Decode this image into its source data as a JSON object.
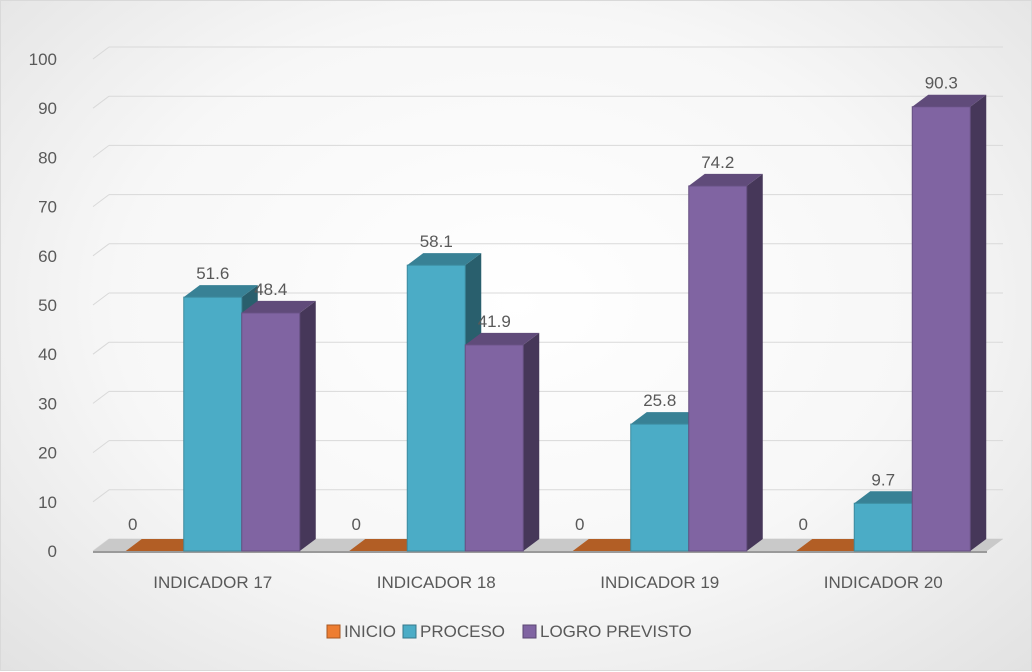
{
  "chart_data": {
    "type": "bar",
    "categories": [
      "INDICADOR 17",
      "INDICADOR 18",
      "INDICADOR 19",
      "INDICADOR 20"
    ],
    "series": [
      {
        "name": "INICIO",
        "values": [
          0,
          0,
          0,
          0
        ],
        "color": "#ED7D31"
      },
      {
        "name": "PROCESO",
        "values": [
          51.6,
          58.1,
          25.8,
          9.7
        ],
        "color": "#4BACC6"
      },
      {
        "name": "LOGRO PREVISTO",
        "values": [
          48.4,
          41.9,
          74.2,
          90.3
        ],
        "color": "#8064A2"
      }
    ],
    "yticks": [
      "0",
      "10",
      "20",
      "30",
      "40",
      "50",
      "60",
      "70",
      "80",
      "90",
      "100"
    ],
    "ylim": [
      0,
      100
    ],
    "grid": true,
    "legend_position": "bottom",
    "style": "3d-clustered-column"
  }
}
